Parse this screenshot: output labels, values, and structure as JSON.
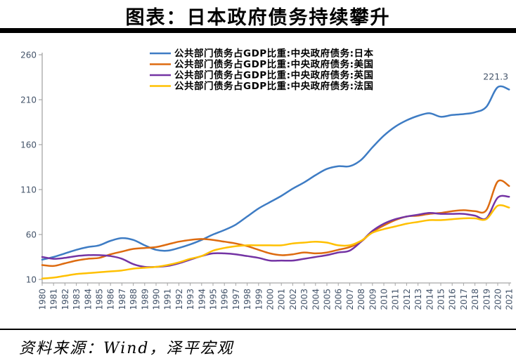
{
  "title": "图表：日本政府债务持续攀升",
  "source": "资料来源：Wind，泽平宏观",
  "annotation": "221.3",
  "colors": {
    "japan": "#3E7CC4",
    "usa": "#DD6B10",
    "uk": "#7434A4",
    "france": "#FFC000",
    "axis": "#A6A6A6",
    "tick_label": "#44546A",
    "title_bar": "#000000"
  },
  "chart_data": {
    "type": "line",
    "title": "图表：日本政府债务持续攀升",
    "x": [
      1980,
      1981,
      1982,
      1983,
      1984,
      1985,
      1986,
      1987,
      1988,
      1989,
      1990,
      1991,
      1992,
      1993,
      1994,
      1995,
      1996,
      1997,
      1998,
      1999,
      2000,
      2001,
      2002,
      2003,
      2004,
      2005,
      2006,
      2007,
      2008,
      2009,
      2010,
      2011,
      2012,
      2013,
      2014,
      2015,
      2016,
      2017,
      2018,
      2019,
      2020,
      2021
    ],
    "ylim": [
      10,
      260
    ],
    "yticks": [
      10,
      60,
      110,
      160,
      210,
      260
    ],
    "grid": false,
    "legend_position": "top-center",
    "annotation": {
      "text": "221.3",
      "x": 2021,
      "y": 221.3
    },
    "series": [
      {
        "key": "japan",
        "name": "公共部门债务占GDP比重:中央政府债务:日本",
        "color": "#3E7CC4",
        "values": [
          32,
          35,
          39,
          43,
          46,
          48,
          53,
          56,
          54,
          48,
          43,
          42,
          45,
          49,
          54,
          60,
          65,
          71,
          80,
          89,
          96,
          103,
          111,
          118,
          126,
          133,
          136,
          136,
          143,
          157,
          170,
          180,
          187,
          192,
          195,
          191,
          193,
          194,
          196,
          202,
          224,
          221.3
        ]
      },
      {
        "key": "usa",
        "name": "公共部门债务占GDP比重:中央政府债务:美国",
        "color": "#DD6B10",
        "values": [
          26,
          25,
          28,
          31,
          33,
          34,
          38,
          41,
          44,
          45,
          46,
          49,
          52,
          54,
          55,
          54,
          52,
          50,
          47,
          43,
          39,
          37,
          38,
          40,
          39,
          40,
          43,
          46,
          52,
          63,
          70,
          76,
          80,
          81,
          83,
          84,
          86,
          87,
          86,
          87,
          119,
          114
        ]
      },
      {
        "key": "uk",
        "name": "公共部门债务占GDP比重:中央政府债务:英国",
        "color": "#7434A4",
        "values": [
          35,
          33,
          34,
          36,
          37,
          37,
          36,
          33,
          27,
          24,
          24,
          25,
          28,
          32,
          36,
          39,
          39,
          38,
          36,
          34,
          31,
          31,
          31,
          33,
          35,
          37,
          40,
          42,
          52,
          64,
          72,
          77,
          80,
          82,
          84,
          83,
          83,
          83,
          81,
          78,
          101,
          102
        ]
      },
      {
        "key": "france",
        "name": "公共部门债务占GDP比重:中央政府债务:法国",
        "color": "#FFC000",
        "values": [
          11,
          12,
          14,
          16,
          17,
          18,
          19,
          20,
          22,
          23,
          24,
          26,
          29,
          33,
          36,
          42,
          45,
          47,
          48,
          48,
          48,
          48,
          50,
          51,
          52,
          51,
          48,
          48,
          53,
          62,
          66,
          69,
          72,
          74,
          76,
          76,
          77,
          78,
          78,
          77,
          92,
          90
        ]
      }
    ]
  }
}
